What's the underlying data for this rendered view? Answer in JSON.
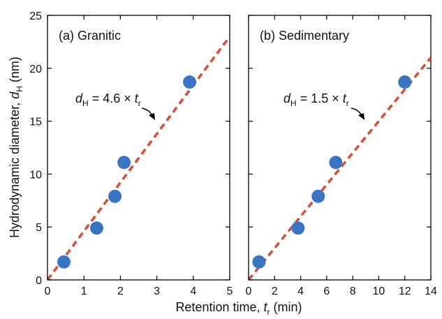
{
  "chart_data": [
    {
      "type": "scatter",
      "panel_label": "(a) Granitic",
      "x": [
        0.45,
        1.35,
        1.85,
        2.1,
        3.9
      ],
      "y": [
        1.7,
        4.9,
        7.9,
        11.1,
        18.7
      ],
      "fit": {
        "slope": 4.6,
        "equation": {
          "lhs_var": "d",
          "lhs_sub": "H",
          "rhs": " = 4.6 × ",
          "rhs_var": "t",
          "rhs_sub": "r"
        }
      },
      "xlim": [
        0,
        5
      ],
      "ylim": [
        0,
        25
      ],
      "xticks": [
        "0",
        "1",
        "2",
        "3",
        "4",
        "5"
      ],
      "yticks": [
        "0",
        "5",
        "10",
        "15",
        "20",
        "25"
      ],
      "colors": {
        "points": "#3a75c4",
        "fit_line": "#d3513a"
      }
    },
    {
      "type": "scatter",
      "panel_label": "(b) Sedimentary",
      "x": [
        0.8,
        3.8,
        5.35,
        6.7,
        12.0
      ],
      "y": [
        1.7,
        4.9,
        7.9,
        11.1,
        18.7
      ],
      "fit": {
        "slope": 1.5,
        "equation": {
          "lhs_var": "d",
          "lhs_sub": "H",
          "rhs": " = 1.5 × ",
          "rhs_var": "t",
          "rhs_sub": "r"
        }
      },
      "xlim": [
        0,
        14
      ],
      "ylim": [
        0,
        25
      ],
      "xticks": [
        "0",
        "2",
        "4",
        "6",
        "8",
        "10",
        "12",
        "14"
      ],
      "yticks": [],
      "colors": {
        "points": "#3a75c4",
        "fit_line": "#d3513a"
      }
    }
  ],
  "axis_titles": {
    "x": {
      "pre": "Retention time, ",
      "var": "t",
      "sub": "r",
      "post": " (min)"
    },
    "y": {
      "pre": "Hydrodynamic diameter, ",
      "var": "d",
      "sub": "H",
      "post": " (nm)"
    }
  }
}
